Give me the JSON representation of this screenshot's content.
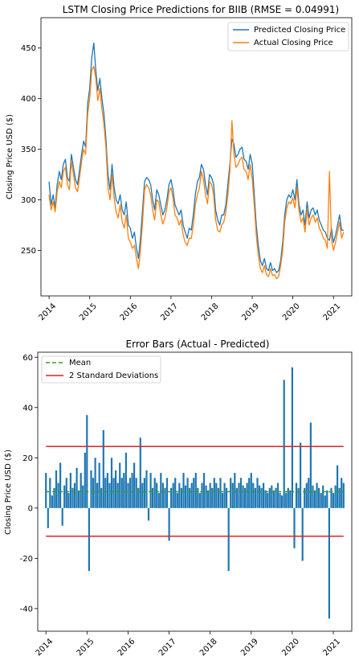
{
  "chart_data": [
    {
      "type": "line",
      "title": "LSTM Closing Price Predictions for BIIB (RMSE = 0.04991)",
      "xlabel": "",
      "ylabel": "Closing Price USD ($)",
      "xlim": [
        2013.8,
        2021.45
      ],
      "ylim": [
        205,
        480
      ],
      "xticks": [
        "2014",
        "2015",
        "2016",
        "2017",
        "2018",
        "2019",
        "2020",
        "2021"
      ],
      "yticks": [
        250,
        300,
        350,
        400,
        450
      ],
      "grid": false,
      "legend_position": "top-right",
      "x": [
        2014.0,
        2014.05,
        2014.1,
        2014.15,
        2014.2,
        2014.25,
        2014.3,
        2014.35,
        2014.4,
        2014.45,
        2014.5,
        2014.55,
        2014.6,
        2014.65,
        2014.7,
        2014.75,
        2014.8,
        2014.85,
        2014.9,
        2014.95,
        2015.0,
        2015.05,
        2015.1,
        2015.15,
        2015.2,
        2015.25,
        2015.3,
        2015.35,
        2015.4,
        2015.45,
        2015.5,
        2015.55,
        2015.6,
        2015.65,
        2015.7,
        2015.75,
        2015.8,
        2015.85,
        2015.9,
        2015.95,
        2016.0,
        2016.05,
        2016.1,
        2016.15,
        2016.2,
        2016.25,
        2016.3,
        2016.35,
        2016.4,
        2016.45,
        2016.5,
        2016.55,
        2016.6,
        2016.65,
        2016.7,
        2016.75,
        2016.8,
        2016.85,
        2016.9,
        2016.95,
        2017.0,
        2017.05,
        2017.1,
        2017.15,
        2017.2,
        2017.25,
        2017.3,
        2017.35,
        2017.4,
        2017.45,
        2017.5,
        2017.55,
        2017.6,
        2017.65,
        2017.7,
        2017.75,
        2017.8,
        2017.85,
        2017.9,
        2017.95,
        2018.0,
        2018.05,
        2018.1,
        2018.15,
        2018.2,
        2018.25,
        2018.3,
        2018.35,
        2018.4,
        2018.45,
        2018.5,
        2018.55,
        2018.6,
        2018.65,
        2018.7,
        2018.75,
        2018.8,
        2018.85,
        2018.9,
        2018.95,
        2019.0,
        2019.05,
        2019.1,
        2019.15,
        2019.2,
        2019.25,
        2019.3,
        2019.35,
        2019.4,
        2019.45,
        2019.5,
        2019.55,
        2019.6,
        2019.65,
        2019.7,
        2019.75,
        2019.8,
        2019.85,
        2019.9,
        2019.95,
        2020.0,
        2020.05,
        2020.1,
        2020.15,
        2020.2,
        2020.25,
        2020.3,
        2020.35,
        2020.4,
        2020.45,
        2020.5,
        2020.55,
        2020.6,
        2020.65,
        2020.7,
        2020.75,
        2020.8,
        2020.85,
        2020.9,
        2020.95,
        2021.0,
        2021.05,
        2021.1,
        2021.15,
        2021.2,
        2021.25
      ],
      "series": [
        {
          "name": "Predicted Closing Price",
          "color": "#1f77b4",
          "values": [
            318,
            295,
            305,
            292,
            315,
            328,
            320,
            335,
            340,
            322,
            318,
            345,
            332,
            320,
            315,
            330,
            345,
            358,
            352,
            395,
            410,
            440,
            455,
            428,
            408,
            420,
            400,
            385,
            360,
            325,
            310,
            335,
            312,
            300,
            296,
            305,
            290,
            285,
            298,
            275,
            272,
            262,
            268,
            252,
            242,
            262,
            290,
            318,
            322,
            320,
            315,
            300,
            290,
            310,
            305,
            295,
            285,
            290,
            300,
            315,
            320,
            310,
            295,
            290,
            285,
            290,
            275,
            268,
            262,
            272,
            270,
            285,
            305,
            318,
            322,
            335,
            330,
            315,
            305,
            325,
            322,
            315,
            290,
            280,
            275,
            285,
            285,
            295,
            315,
            335,
            360,
            355,
            342,
            345,
            350,
            352,
            340,
            338,
            330,
            345,
            335,
            305,
            275,
            255,
            240,
            235,
            242,
            232,
            230,
            238,
            230,
            232,
            228,
            230,
            240,
            258,
            285,
            300,
            305,
            302,
            310,
            300,
            320,
            296,
            285,
            290,
            275,
            298,
            282,
            290,
            292,
            285,
            290,
            280,
            275,
            270,
            268,
            262,
            260,
            272,
            258,
            265,
            275,
            285,
            270,
            270
          ]
        },
        {
          "name": "Actual Closing Price",
          "color": "#ff7f0e",
          "values": [
            305,
            290,
            298,
            288,
            308,
            318,
            312,
            328,
            332,
            315,
            310,
            338,
            325,
            312,
            308,
            322,
            338,
            350,
            345,
            385,
            400,
            428,
            432,
            420,
            398,
            410,
            390,
            375,
            352,
            312,
            300,
            325,
            302,
            288,
            282,
            295,
            278,
            272,
            285,
            262,
            258,
            252,
            255,
            242,
            232,
            250,
            278,
            310,
            315,
            312,
            305,
            290,
            280,
            300,
            298,
            285,
            276,
            282,
            292,
            308,
            312,
            302,
            285,
            282,
            275,
            280,
            265,
            258,
            255,
            262,
            262,
            275,
            295,
            305,
            312,
            328,
            320,
            305,
            296,
            318,
            315,
            305,
            280,
            270,
            268,
            275,
            278,
            288,
            305,
            328,
            378,
            345,
            332,
            335,
            340,
            342,
            330,
            328,
            320,
            335,
            320,
            295,
            265,
            245,
            232,
            228,
            235,
            226,
            224,
            232,
            225,
            226,
            222,
            224,
            235,
            250,
            278,
            292,
            298,
            296,
            302,
            292,
            312,
            290,
            278,
            282,
            268,
            290,
            275,
            282,
            285,
            278,
            282,
            272,
            268,
            262,
            260,
            252,
            328,
            262,
            250,
            258,
            268,
            278,
            262,
            268
          ]
        }
      ]
    },
    {
      "type": "bar",
      "title": "Error Bars (Actual - Predicted)",
      "xlabel": "",
      "ylabel": "Closing Price USD ($)",
      "xlim": [
        2013.8,
        2021.45
      ],
      "ylim": [
        -49,
        62
      ],
      "xticks": [
        "2014",
        "2015",
        "2016",
        "2017",
        "2018",
        "2019",
        "2020",
        "2021"
      ],
      "yticks": [
        -40,
        -20,
        0,
        20,
        40,
        60
      ],
      "grid": false,
      "legend_position": "top-left",
      "bar_color": "#1f77b4",
      "mean": 6.5,
      "mean_color": "#2ca02c",
      "std_upper": 24.5,
      "std_lower": -11.2,
      "std_color": "#d62728",
      "mean_label": "Mean",
      "std_label": "2 Standard Deviations",
      "x": [
        2014.0,
        2014.05,
        2014.1,
        2014.15,
        2014.2,
        2014.25,
        2014.3,
        2014.35,
        2014.4,
        2014.45,
        2014.5,
        2014.55,
        2014.6,
        2014.65,
        2014.7,
        2014.75,
        2014.8,
        2014.85,
        2014.9,
        2014.95,
        2015.0,
        2015.05,
        2015.1,
        2015.15,
        2015.2,
        2015.25,
        2015.3,
        2015.35,
        2015.4,
        2015.45,
        2015.5,
        2015.55,
        2015.6,
        2015.65,
        2015.7,
        2015.75,
        2015.8,
        2015.85,
        2015.9,
        2015.95,
        2016.0,
        2016.05,
        2016.1,
        2016.15,
        2016.2,
        2016.25,
        2016.3,
        2016.35,
        2016.4,
        2016.45,
        2016.5,
        2016.55,
        2016.6,
        2016.65,
        2016.7,
        2016.75,
        2016.8,
        2016.85,
        2016.9,
        2016.95,
        2017.0,
        2017.05,
        2017.1,
        2017.15,
        2017.2,
        2017.25,
        2017.3,
        2017.35,
        2017.4,
        2017.45,
        2017.5,
        2017.55,
        2017.6,
        2017.65,
        2017.7,
        2017.75,
        2017.8,
        2017.85,
        2017.9,
        2017.95,
        2018.0,
        2018.05,
        2018.1,
        2018.15,
        2018.2,
        2018.25,
        2018.3,
        2018.35,
        2018.4,
        2018.45,
        2018.5,
        2018.55,
        2018.6,
        2018.65,
        2018.7,
        2018.75,
        2018.8,
        2018.85,
        2018.9,
        2018.95,
        2019.0,
        2019.05,
        2019.1,
        2019.15,
        2019.2,
        2019.25,
        2019.3,
        2019.35,
        2019.4,
        2019.45,
        2019.5,
        2019.55,
        2019.6,
        2019.65,
        2019.7,
        2019.75,
        2019.8,
        2019.85,
        2019.9,
        2019.95,
        2020.0,
        2020.05,
        2020.1,
        2020.15,
        2020.2,
        2020.25,
        2020.3,
        2020.35,
        2020.4,
        2020.45,
        2020.5,
        2020.55,
        2020.6,
        2020.65,
        2020.7,
        2020.75,
        2020.8,
        2020.85,
        2020.9,
        2020.95,
        2021.0,
        2021.05,
        2021.1,
        2021.15,
        2021.2,
        2021.25
      ],
      "values": [
        14,
        -8,
        12,
        5,
        8,
        15,
        10,
        18,
        -7,
        9,
        12,
        6,
        14,
        8,
        10,
        16,
        7,
        14,
        9,
        22,
        37,
        -25,
        15,
        12,
        20,
        10,
        18,
        8,
        31,
        12,
        14,
        10,
        20,
        12,
        15,
        10,
        18,
        12,
        14,
        22,
        10,
        12,
        14,
        18,
        12,
        8,
        28,
        10,
        12,
        15,
        -5,
        14,
        8,
        12,
        10,
        6,
        14,
        10,
        8,
        12,
        -13,
        8,
        10,
        12,
        6,
        10,
        8,
        14,
        9,
        12,
        8,
        10,
        12,
        14,
        8,
        6,
        10,
        14,
        9,
        7,
        10,
        8,
        12,
        10,
        8,
        12,
        6,
        10,
        8,
        -25,
        12,
        10,
        14,
        8,
        10,
        12,
        9,
        8,
        10,
        12,
        14,
        10,
        8,
        12,
        9,
        8,
        10,
        7,
        6,
        8,
        9,
        7,
        8,
        10,
        6,
        5,
        51,
        6,
        8,
        7,
        56,
        -16,
        10,
        8,
        26,
        -21,
        8,
        10,
        12,
        34,
        9,
        7,
        10,
        8,
        6,
        9,
        5,
        7,
        -44,
        8,
        6,
        9,
        17,
        8,
        12,
        10
      ]
    }
  ]
}
